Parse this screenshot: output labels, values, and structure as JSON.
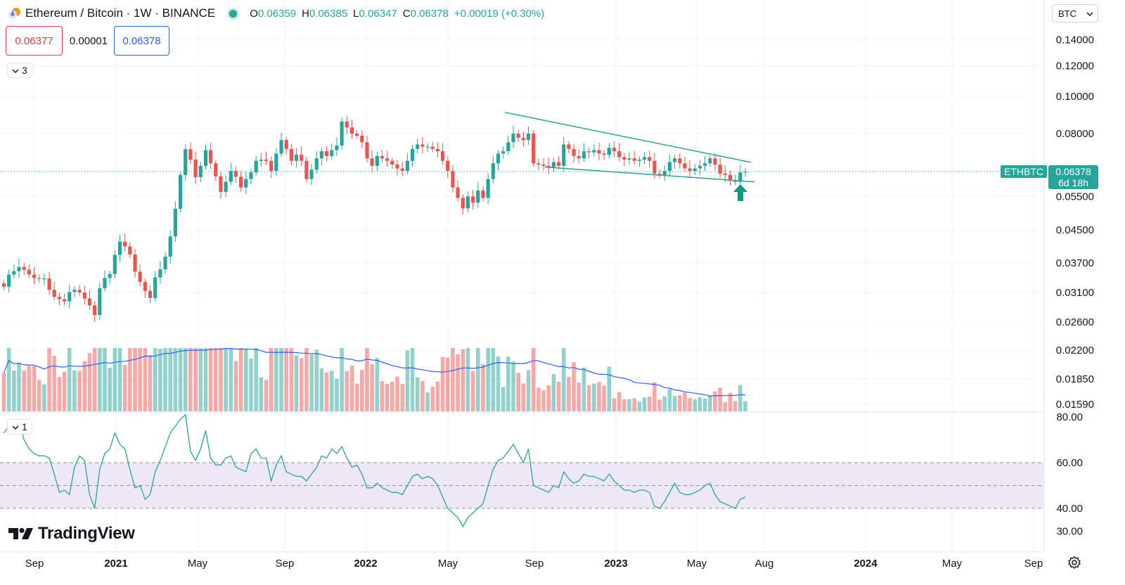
{
  "header": {
    "symbol": "Ethereum / Bitcoin · 1W · BINANCE",
    "ohlc": [
      {
        "k": "O",
        "v": "0.06359"
      },
      {
        "k": "H",
        "v": "0.06385"
      },
      {
        "k": "L",
        "v": "0.06347"
      },
      {
        "k": "C",
        "v": "0.06378"
      },
      {
        "k": "",
        "v": "+0.00019 (+0.30%)"
      }
    ]
  },
  "quote": {
    "bid": "0.06377",
    "spread": "0.00001",
    "ask": "0.06378"
  },
  "legend": {
    "main_count": "3",
    "rsi_count": "1"
  },
  "currency_select": "BTC",
  "price_tag": {
    "label": "ETHBTC",
    "price": "0.06378",
    "countdown": "6d 18h"
  },
  "branding": "TradingView",
  "colors": {
    "up": "#26a69a",
    "down": "#ef5350",
    "ma": "#2962ff",
    "rsi": "#26a69a",
    "rsi_band": "#ede7f6"
  },
  "chart_data": [
    {
      "type": "candlestick",
      "scale": "log",
      "y_ticks": [
        "0.14000",
        "0.12000",
        "0.10000",
        "0.08000",
        "0.06378",
        "0.05500",
        "0.04500",
        "0.03700",
        "0.03100",
        "0.02600",
        "0.02200",
        "0.01850",
        "0.01590"
      ],
      "x_ticks": [
        "Sep",
        "2021",
        "May",
        "Sep",
        "2022",
        "May",
        "Sep",
        "2023",
        "May",
        "Aug",
        "2024",
        "May",
        "Sep"
      ],
      "close": [
        0.0321,
        0.0345,
        0.0352,
        0.0361,
        0.0355,
        0.0345,
        0.0338,
        0.0337,
        0.0337,
        0.0315,
        0.0302,
        0.0298,
        0.0294,
        0.0311,
        0.0315,
        0.031,
        0.0299,
        0.0287,
        0.0271,
        0.0318,
        0.0338,
        0.0346,
        0.0388,
        0.042,
        0.0408,
        0.0389,
        0.0351,
        0.033,
        0.0313,
        0.03,
        0.0339,
        0.0356,
        0.0384,
        0.0433,
        0.0511,
        0.0625,
        0.0729,
        0.0685,
        0.0617,
        0.066,
        0.0725,
        0.067,
        0.062,
        0.0565,
        0.06,
        0.064,
        0.0618,
        0.058,
        0.061,
        0.0635,
        0.068,
        0.0685,
        0.068,
        0.064,
        0.071,
        0.077,
        0.073,
        0.068,
        0.0705,
        0.068,
        0.061,
        0.0645,
        0.069,
        0.072,
        0.07,
        0.0725,
        0.0745,
        0.086,
        0.083,
        0.08,
        0.079,
        0.076,
        0.069,
        0.066,
        0.07,
        0.069,
        0.068,
        0.0665,
        0.065,
        0.064,
        0.068,
        0.073,
        0.075,
        0.074,
        0.074,
        0.073,
        0.072,
        0.068,
        0.064,
        0.058,
        0.0545,
        0.0512,
        0.055,
        0.053,
        0.057,
        0.0545,
        0.061,
        0.067,
        0.071,
        0.072,
        0.076,
        0.08,
        0.078,
        0.077,
        0.08,
        0.067,
        0.0665,
        0.066,
        0.0655,
        0.0675,
        0.066,
        0.075,
        0.073,
        0.07,
        0.069,
        0.072,
        0.0715,
        0.0725,
        0.071,
        0.0705,
        0.0735,
        0.072,
        0.0695,
        0.0685,
        0.069,
        0.068,
        0.0685,
        0.0695,
        0.068,
        0.063,
        0.0625,
        0.064,
        0.0675,
        0.069,
        0.067,
        0.065,
        0.064,
        0.065,
        0.066,
        0.067,
        0.069,
        0.0665,
        0.063,
        0.0625,
        0.0605,
        0.06,
        0.0635,
        0.0638
      ],
      "rsi_levels": [
        40,
        50,
        60
      ],
      "rsi_ticks": [
        "80.00",
        "60.00",
        "40.00",
        "30.00"
      ],
      "rsi": [
        73,
        76,
        73,
        78,
        70,
        66,
        64,
        63,
        63,
        62,
        55,
        47,
        48,
        46,
        58,
        63,
        61,
        46,
        40,
        57,
        64,
        66,
        73,
        68,
        66,
        57,
        49,
        50,
        44,
        46,
        56,
        61,
        67,
        73,
        76,
        79,
        81,
        65,
        61,
        66,
        74,
        62,
        59,
        59,
        62,
        63,
        58,
        57,
        56,
        64,
        66,
        62,
        62,
        52,
        59,
        63,
        56,
        55,
        54,
        54,
        52,
        55,
        58,
        63,
        62,
        66,
        64,
        67,
        62,
        58,
        59,
        55,
        49,
        49,
        51,
        49,
        48,
        47,
        47,
        46,
        50,
        54,
        55,
        53,
        54,
        53,
        50,
        45,
        40,
        38,
        36,
        32,
        36,
        38,
        40,
        42,
        50,
        57,
        61,
        62,
        65,
        68,
        64,
        60,
        66,
        50,
        49,
        48,
        47,
        50,
        49,
        56,
        53,
        51,
        52,
        55,
        54,
        54,
        53,
        52,
        55,
        52,
        50,
        48,
        48,
        47,
        48,
        48,
        47,
        41,
        40,
        43,
        47,
        51,
        47,
        46,
        46,
        47,
        48,
        50,
        51,
        46,
        43,
        42,
        41,
        40,
        44,
        45
      ]
    }
  ]
}
